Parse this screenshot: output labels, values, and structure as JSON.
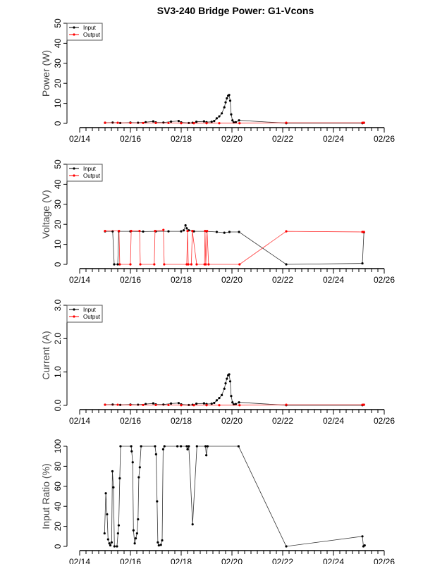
{
  "chart_data": {
    "title": "SV3-240 Bridge Power: G1-Vcons",
    "type": "line",
    "x_unit": "day of February",
    "xlim": [
      14,
      26
    ],
    "x_tick_values": [
      14,
      16,
      18,
      20,
      22,
      24,
      26
    ],
    "x_tick_labels": [
      "02/14",
      "02/16",
      "02/18",
      "02/20",
      "02/22",
      "02/24",
      "02/26"
    ],
    "legend": [
      "Input",
      "Output"
    ],
    "colors": {
      "Input": "#000000",
      "Output": "#ff0000"
    },
    "panels": [
      {
        "id": "power",
        "ylabel": "Power (W)",
        "ylim": [
          0,
          50
        ],
        "y_ticks": [
          "0",
          "10",
          "20",
          "30",
          "40",
          "50"
        ],
        "y_tick_values": [
          0,
          10,
          20,
          30,
          40,
          50
        ],
        "legend": true,
        "series": [
          {
            "name": "Input",
            "points": [
              [
                15.0,
                0.3
              ],
              [
                15.3,
                0.4
              ],
              [
                15.6,
                0.2
              ],
              [
                16.0,
                0.4
              ],
              [
                16.3,
                0.3
              ],
              [
                16.6,
                0.6
              ],
              [
                16.9,
                1.0
              ],
              [
                17.0,
                0.5
              ],
              [
                17.3,
                0.4
              ],
              [
                17.6,
                0.9
              ],
              [
                17.9,
                1.2
              ],
              [
                18.0,
                0.5
              ],
              [
                18.3,
                0.2
              ],
              [
                18.45,
                0.3
              ],
              [
                18.6,
                0.8
              ],
              [
                18.9,
                1.0
              ],
              [
                19.0,
                0.6
              ],
              [
                19.2,
                0.8
              ],
              [
                19.3,
                1.2
              ],
              [
                19.4,
                2.5
              ],
              [
                19.5,
                3.5
              ],
              [
                19.6,
                5.0
              ],
              [
                19.7,
                8.0
              ],
              [
                19.75,
                10.5
              ],
              [
                19.8,
                12.5
              ],
              [
                19.85,
                13.8
              ],
              [
                19.89,
                14.2
              ],
              [
                19.93,
                11.3
              ],
              [
                19.97,
                4.5
              ],
              [
                20.02,
                1.5
              ],
              [
                20.07,
                0.5
              ],
              [
                20.15,
                0.6
              ],
              [
                20.28,
                1.5
              ],
              [
                22.14,
                0.1
              ],
              [
                25.14,
                0.1
              ],
              [
                25.2,
                0.3
              ]
            ]
          },
          {
            "name": "Output",
            "points": [
              [
                15.0,
                0.3
              ],
              [
                15.5,
                0.3
              ],
              [
                16.0,
                0.2
              ],
              [
                16.5,
                0.2
              ],
              [
                17.0,
                0.2
              ],
              [
                17.5,
                0.2
              ],
              [
                18.0,
                0.1
              ],
              [
                18.5,
                0.1
              ],
              [
                19.0,
                0.1
              ],
              [
                19.5,
                0.1
              ],
              [
                20.3,
                0.1
              ],
              [
                22.14,
                0.3
              ],
              [
                25.14,
                0.3
              ],
              [
                25.2,
                0.3
              ]
            ]
          }
        ]
      },
      {
        "id": "voltage",
        "ylabel": "Voltage (V)",
        "ylim": [
          0,
          50
        ],
        "y_ticks": [
          "0",
          "10",
          "20",
          "30",
          "40",
          "50"
        ],
        "y_tick_values": [
          0,
          10,
          20,
          30,
          40,
          50
        ],
        "legend": true,
        "series": [
          {
            "name": "Input",
            "points": [
              [
                15.0,
                16.5
              ],
              [
                15.3,
                16.5
              ],
              [
                15.36,
                0
              ],
              [
                15.5,
                0
              ],
              [
                15.54,
                16.5
              ],
              [
                16.0,
                16.5
              ],
              [
                16.5,
                16.4
              ],
              [
                17.0,
                16.5
              ],
              [
                17.5,
                16.5
              ],
              [
                18.0,
                16.5
              ],
              [
                18.1,
                17
              ],
              [
                18.17,
                19.5
              ],
              [
                18.22,
                18
              ],
              [
                18.3,
                17
              ],
              [
                18.5,
                16.5
              ],
              [
                19.0,
                16.5
              ],
              [
                19.4,
                16.2
              ],
              [
                19.7,
                15.8
              ],
              [
                19.9,
                16.2
              ],
              [
                20.28,
                16.2
              ],
              [
                22.14,
                0
              ],
              [
                25.14,
                0.5
              ],
              [
                25.2,
                16.0
              ]
            ]
          },
          {
            "name": "Output",
            "points": [
              [
                15.0,
                16.7
              ],
              [
                15.55,
                16.7
              ],
              [
                15.58,
                0
              ],
              [
                16.0,
                0
              ],
              [
                16.03,
                16.7
              ],
              [
                16.36,
                16.7
              ],
              [
                16.39,
                0
              ],
              [
                16.94,
                0
              ],
              [
                16.97,
                16.7
              ],
              [
                17.3,
                17.2
              ],
              [
                17.33,
                0
              ],
              [
                18.22,
                0
              ],
              [
                18.25,
                16.7
              ],
              [
                18.28,
                0
              ],
              [
                18.4,
                0
              ],
              [
                18.44,
                16.7
              ],
              [
                18.61,
                0
              ],
              [
                18.92,
                0
              ],
              [
                18.94,
                16.7
              ],
              [
                18.97,
                0
              ],
              [
                19.02,
                16.7
              ],
              [
                19.08,
                0
              ],
              [
                20.3,
                0
              ],
              [
                22.14,
                16.5
              ],
              [
                25.14,
                16.2
              ],
              [
                25.2,
                16.2
              ]
            ]
          }
        ]
      },
      {
        "id": "current",
        "ylabel": "Current (A)",
        "ylim": [
          0,
          3
        ],
        "y_ticks": [
          "0.0",
          "1.0",
          "2.0",
          "3.0"
        ],
        "y_tick_values": [
          0,
          1,
          2,
          3
        ],
        "legend": true,
        "series": [
          {
            "name": "Input",
            "points": [
              [
                15.0,
                0.02
              ],
              [
                15.3,
                0.025
              ],
              [
                15.6,
                0.015
              ],
              [
                16.0,
                0.025
              ],
              [
                16.3,
                0.02
              ],
              [
                16.6,
                0.04
              ],
              [
                16.9,
                0.06
              ],
              [
                17.0,
                0.03
              ],
              [
                17.3,
                0.025
              ],
              [
                17.6,
                0.055
              ],
              [
                17.9,
                0.07
              ],
              [
                18.0,
                0.03
              ],
              [
                18.3,
                0.012
              ],
              [
                18.45,
                0.02
              ],
              [
                18.6,
                0.05
              ],
              [
                18.9,
                0.06
              ],
              [
                19.0,
                0.04
              ],
              [
                19.2,
                0.05
              ],
              [
                19.3,
                0.075
              ],
              [
                19.4,
                0.15
              ],
              [
                19.5,
                0.22
              ],
              [
                19.6,
                0.31
              ],
              [
                19.7,
                0.5
              ],
              [
                19.75,
                0.66
              ],
              [
                19.8,
                0.8
              ],
              [
                19.85,
                0.9
              ],
              [
                19.89,
                0.93
              ],
              [
                19.93,
                0.72
              ],
              [
                19.97,
                0.28
              ],
              [
                20.02,
                0.09
              ],
              [
                20.07,
                0.03
              ],
              [
                20.15,
                0.04
              ],
              [
                20.28,
                0.09
              ],
              [
                22.14,
                0.005
              ],
              [
                25.14,
                0.005
              ],
              [
                25.2,
                0.02
              ]
            ]
          },
          {
            "name": "Output",
            "points": [
              [
                15.0,
                0.02
              ],
              [
                15.5,
                0.02
              ],
              [
                16.0,
                0.012
              ],
              [
                16.5,
                0.012
              ],
              [
                17.0,
                0.012
              ],
              [
                17.5,
                0.012
              ],
              [
                18.0,
                0.006
              ],
              [
                18.5,
                0.006
              ],
              [
                19.0,
                0.006
              ],
              [
                19.5,
                0.006
              ],
              [
                20.3,
                0.006
              ],
              [
                22.14,
                0.018
              ],
              [
                25.14,
                0.018
              ],
              [
                25.2,
                0.018
              ]
            ]
          }
        ]
      },
      {
        "id": "ratio",
        "ylabel": "Input Ratio (%)",
        "ylim": [
          0,
          100
        ],
        "y_ticks": [
          "0",
          "20",
          "40",
          "60",
          "80",
          "100"
        ],
        "y_tick_values": [
          0,
          20,
          40,
          60,
          80,
          100
        ],
        "legend": false,
        "series": [
          {
            "name": "Input Ratio",
            "points": [
              [
                14.98,
                13
              ],
              [
                15.03,
                53
              ],
              [
                15.08,
                32
              ],
              [
                15.12,
                7
              ],
              [
                15.17,
                3
              ],
              [
                15.21,
                1
              ],
              [
                15.26,
                4
              ],
              [
                15.29,
                75
              ],
              [
                15.33,
                59
              ],
              [
                15.37,
                0
              ],
              [
                15.47,
                0
              ],
              [
                15.51,
                13
              ],
              [
                15.54,
                21
              ],
              [
                15.58,
                68
              ],
              [
                15.61,
                100
              ],
              [
                16.03,
                100
              ],
              [
                16.05,
                95
              ],
              [
                16.09,
                84
              ],
              [
                16.12,
                16
              ],
              [
                16.17,
                3
              ],
              [
                16.21,
                8
              ],
              [
                16.26,
                13
              ],
              [
                16.3,
                27
              ],
              [
                16.33,
                69
              ],
              [
                16.37,
                79
              ],
              [
                16.42,
                100
              ],
              [
                16.97,
                100
              ],
              [
                17.01,
                92
              ],
              [
                17.05,
                45
              ],
              [
                17.08,
                4
              ],
              [
                17.12,
                1
              ],
              [
                17.2,
                1.5
              ],
              [
                17.25,
                6
              ],
              [
                17.29,
                97
              ],
              [
                17.34,
                100
              ],
              [
                17.85,
                100
              ],
              [
                17.99,
                100
              ],
              [
                18.22,
                100
              ],
              [
                18.25,
                97
              ],
              [
                18.3,
                100
              ],
              [
                18.45,
                22
              ],
              [
                18.62,
                100
              ],
              [
                18.96,
                100
              ],
              [
                18.99,
                91
              ],
              [
                19.04,
                100
              ],
              [
                20.26,
                100
              ],
              [
                22.14,
                0
              ],
              [
                25.14,
                10
              ],
              [
                25.18,
                0
              ],
              [
                25.23,
                1
              ]
            ]
          }
        ]
      }
    ]
  }
}
